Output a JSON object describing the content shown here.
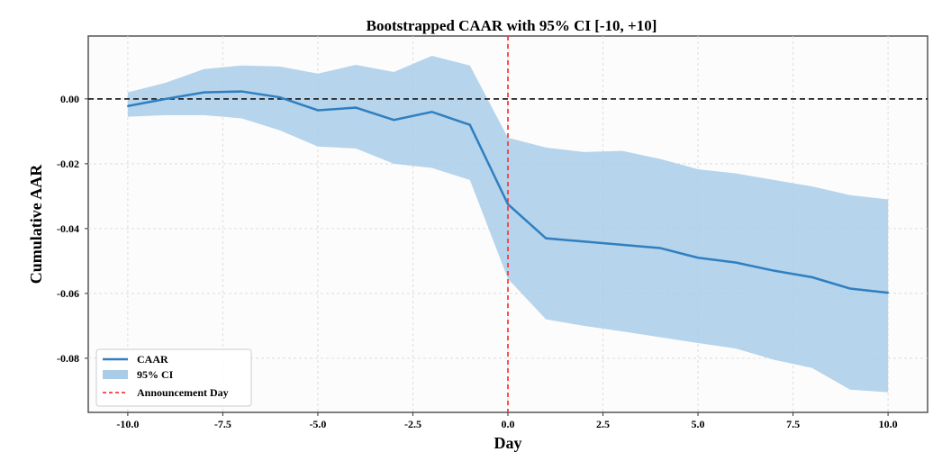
{
  "chart_data": {
    "type": "line",
    "title": "Bootstrapped CAAR with 95% CI [-10, +10]",
    "xlabel": "Day",
    "ylabel": "Cumulative AAR",
    "xlim": [
      -11.04,
      11.04
    ],
    "ylim": [
      -0.0967,
      0.0194
    ],
    "xticks": [
      -10.0,
      -7.5,
      -5.0,
      -2.5,
      0.0,
      2.5,
      5.0,
      7.5,
      10.0
    ],
    "xtick_labels": [
      "-10.0",
      "-7.5",
      "-5.0",
      "-2.5",
      "0.0",
      "2.5",
      "5.0",
      "7.5",
      "10.0"
    ],
    "yticks": [
      0.0,
      -0.02,
      -0.04,
      -0.06,
      -0.08
    ],
    "ytick_labels": [
      "0.00",
      "-0.02",
      "-0.04",
      "-0.06",
      "-0.08"
    ],
    "grid": true,
    "legend_placement": "lower-left",
    "x": [
      -10,
      -9,
      -8,
      -7,
      -6,
      -5,
      -4,
      -3,
      -2,
      -1,
      0,
      1,
      2,
      3,
      4,
      5,
      6,
      7,
      8,
      9,
      10
    ],
    "series": [
      {
        "name": "CAAR",
        "color": "#2f7fc1",
        "values": [
          -0.0022,
          0.0,
          0.002,
          0.0023,
          0.0005,
          -0.0035,
          -0.0027,
          -0.0065,
          -0.004,
          -0.008,
          -0.0325,
          -0.043,
          -0.044,
          -0.045,
          -0.046,
          -0.049,
          -0.0505,
          -0.053,
          -0.055,
          -0.0585,
          -0.0598
        ]
      },
      {
        "name": "95% CI",
        "color": "#a9cce8",
        "upper": [
          0.002,
          0.005,
          0.0092,
          0.0103,
          0.01,
          0.0078,
          0.0105,
          0.0083,
          0.0133,
          0.0103,
          -0.012,
          -0.015,
          -0.0164,
          -0.016,
          -0.0185,
          -0.0217,
          -0.023,
          -0.025,
          -0.027,
          -0.0297,
          -0.031
        ],
        "lower": [
          -0.0055,
          -0.005,
          -0.005,
          -0.006,
          -0.0097,
          -0.0147,
          -0.0153,
          -0.02,
          -0.0213,
          -0.025,
          -0.0555,
          -0.068,
          -0.07,
          -0.0717,
          -0.0735,
          -0.0753,
          -0.077,
          -0.0805,
          -0.083,
          -0.0897,
          -0.0905
        ]
      }
    ],
    "reference_lines": [
      {
        "name": "Zero line",
        "axis": "y",
        "value": 0.0,
        "color": "#222222",
        "style": "dashed"
      },
      {
        "name": "Announcement Day",
        "axis": "x",
        "value": 0.0,
        "color": "#ff3b3b",
        "style": "dashed"
      }
    ],
    "legend": [
      "CAAR",
      "95% CI",
      "Announcement Day"
    ]
  }
}
